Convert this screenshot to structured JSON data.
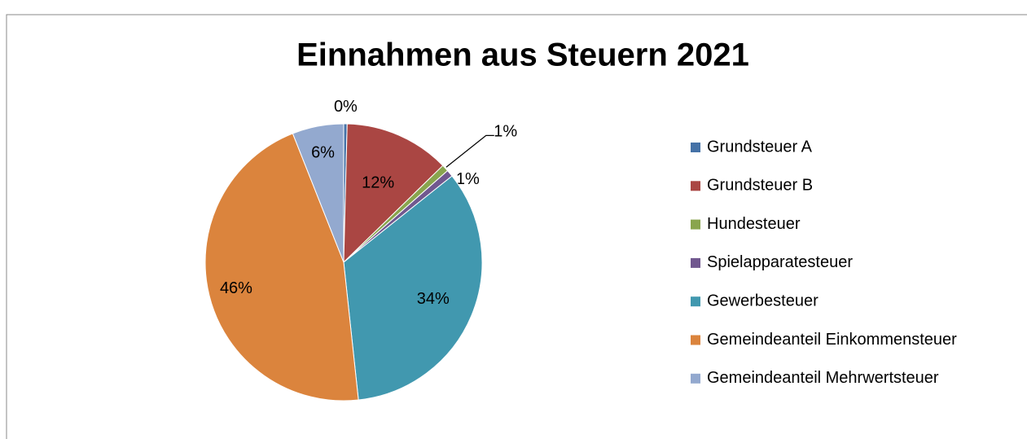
{
  "chart_data": {
    "type": "pie",
    "title": "Einnahmen aus Steuern 2021",
    "categories": [
      "Grundsteuer A",
      "Grundsteuer B",
      "Hundesteuer",
      "Spielapparatesteuer",
      "Gewerbesteuer",
      "Gemeindeanteil Einkommensteuer",
      "Gemeindeanteil Mehrwertsteuer"
    ],
    "values": [
      0.4,
      12.3,
      0.8,
      0.8,
      34,
      45.7,
      6
    ],
    "value_labels": [
      "0%",
      "12%",
      "1%",
      "1%",
      "34%",
      "46%",
      "6%"
    ],
    "colors": [
      "#4572A7",
      "#AA4643",
      "#89A54E",
      "#71588F",
      "#4198AF",
      "#DB843D",
      "#93A9CF"
    ],
    "legend": "right"
  }
}
